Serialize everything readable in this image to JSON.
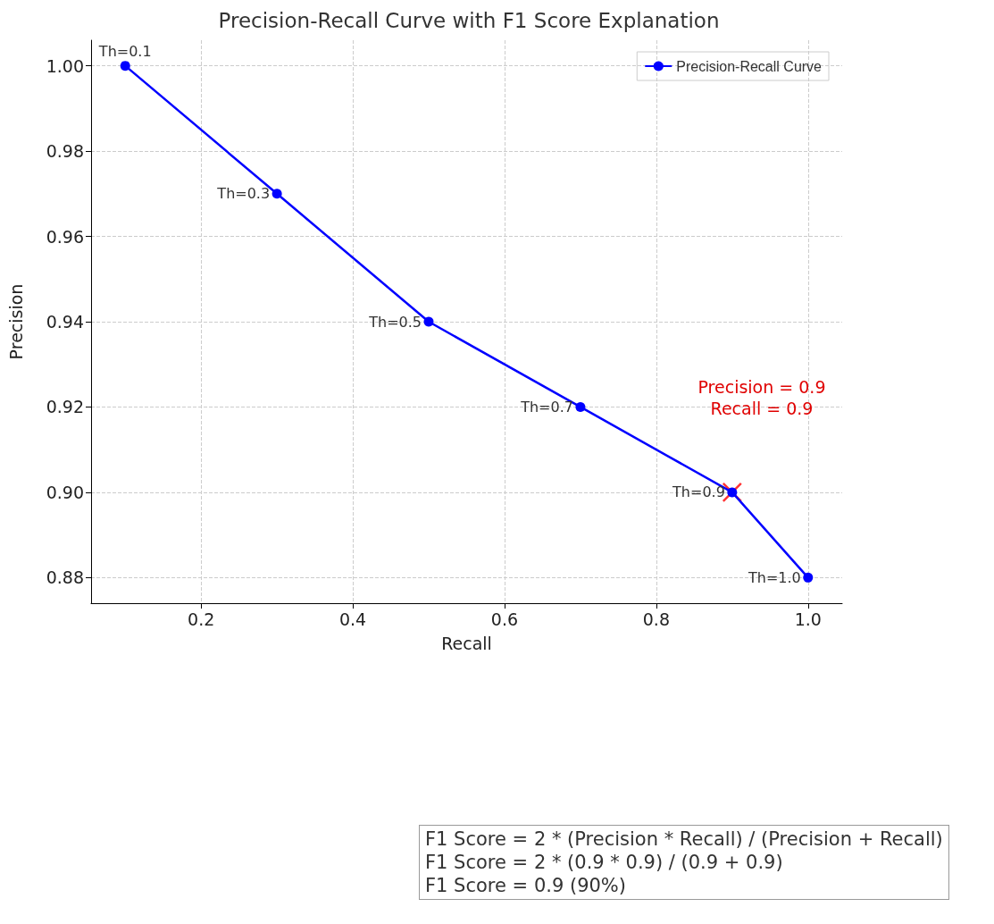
{
  "chart_data": {
    "type": "line",
    "title": "Precision-Recall Curve with F1 Score Explanation",
    "xlabel": "Recall",
    "ylabel": "Precision",
    "series": [
      {
        "name": "Precision-Recall Curve",
        "color": "#0000ff",
        "marker": "circle",
        "line_style": "solid",
        "x": [
          0.1,
          0.3,
          0.5,
          0.7,
          0.9,
          1.0
        ],
        "values": [
          1.0,
          0.97,
          0.94,
          0.92,
          0.9,
          0.88
        ]
      },
      {
        "type": "scatter",
        "color": "#ff0000",
        "marker": "cross",
        "x": [
          0.9
        ],
        "values": [
          0.9
        ]
      }
    ],
    "xlim": [
      0.055,
      1.045
    ],
    "xticks": [
      0.2,
      0.4,
      0.6,
      0.8,
      {
        "value": 1.0,
        "label": "1.0"
      }
    ],
    "ylim": [
      0.874,
      1.006
    ],
    "yticks": [
      0.88,
      {
        "value": 0.9,
        "label": "0.90"
      },
      0.92,
      0.94,
      0.96,
      0.98,
      {
        "value": 1.0,
        "label": "1.00"
      }
    ],
    "grid": true,
    "legend": "top right",
    "annotations": [
      "Precision = 0.9\nRecall = 0.9",
      {
        "text": "Th=0.1",
        "x": 0.1,
        "y": 1.0
      },
      {
        "text": "Th=0.3",
        "x": 0.3,
        "y": 0.97
      },
      {
        "text": "Th=0.5",
        "x": 0.5,
        "y": 0.94
      },
      {
        "text": "Th=0.7",
        "x": 0.7,
        "y": 0.92
      },
      {
        "text": "Th=0.9",
        "x": 0.9,
        "y": 0.9
      },
      {
        "text": "Th=1.0",
        "x": 1.0,
        "y": 0.88
      },
      "F1 Score = 2 * (Precision * Recall) / (Precision + Recall)",
      "F1 Score = 2 * (0.9 * 0.9) / (0.9 + 0.9)",
      "F1 Score = 0.9 (90%)"
    ]
  }
}
